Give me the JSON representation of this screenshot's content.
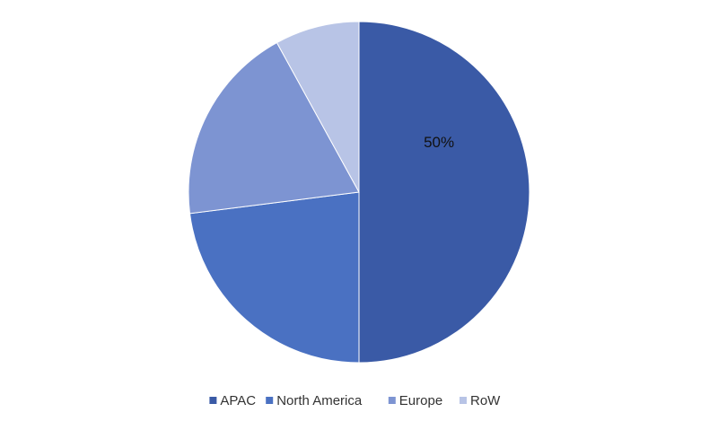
{
  "chart_data": {
    "type": "pie",
    "categories": [
      "APAC",
      "North America",
      "Europe",
      "RoW"
    ],
    "values": [
      50,
      23,
      19,
      8
    ],
    "value_labels": [
      "50%",
      null,
      null,
      null
    ],
    "colors": [
      "#3a5aa6",
      "#4a71c2",
      "#7d94d2",
      "#b8c4e6"
    ],
    "legend": "bottom"
  }
}
